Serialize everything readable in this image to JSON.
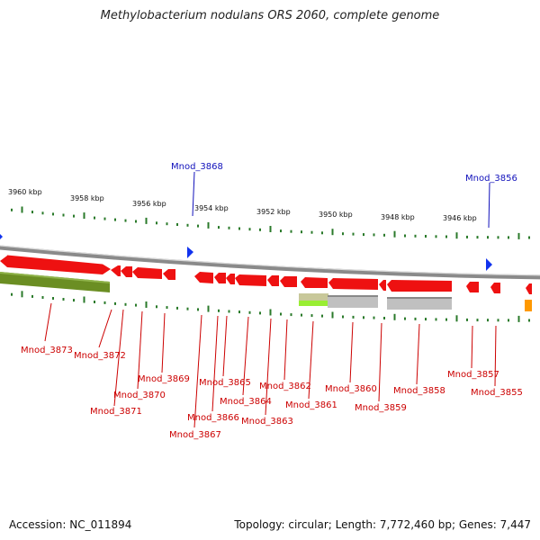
{
  "title": "Methylobacterium nodulans ORS 2060, complete genome",
  "footer": {
    "accession": "Accession: NC_011894",
    "info": "Topology: circular; Length: 7,772,460 bp; Genes: 7,447"
  },
  "colors": {
    "gene": "#ee1111",
    "gene_dark": "#aa0000",
    "label_red": "#cc0000",
    "label_blue": "#1111bb",
    "tick": "#2a7a2a",
    "backbone": "#8a8a8a",
    "olive": "#6b8e23",
    "grey_feature": "#c0c0c0",
    "lime": "#99ee33",
    "orange": "#ff9900",
    "marker": "#1133ee"
  },
  "scale": [
    "3960 kbp",
    "3958 kbp",
    "3956 kbp",
    "3954 kbp",
    "3952 kbp",
    "3950 kbp",
    "3948 kbp",
    "3946 kbp"
  ],
  "top_labels": [
    "Mnod_3868",
    "Mnod_3856"
  ],
  "gene_labels": [
    "Mnod_3873",
    "Mnod_3872",
    "Mnod_3870",
    "Mnod_3871",
    "Mnod_3869",
    "Mnod_3867",
    "Mnod_3866",
    "Mnod_3865",
    "Mnod_3864",
    "Mnod_3863",
    "Mnod_3862",
    "Mnod_3861",
    "Mnod_3860",
    "Mnod_3859",
    "Mnod_3858",
    "Mnod_3857",
    "Mnod_3855"
  ]
}
